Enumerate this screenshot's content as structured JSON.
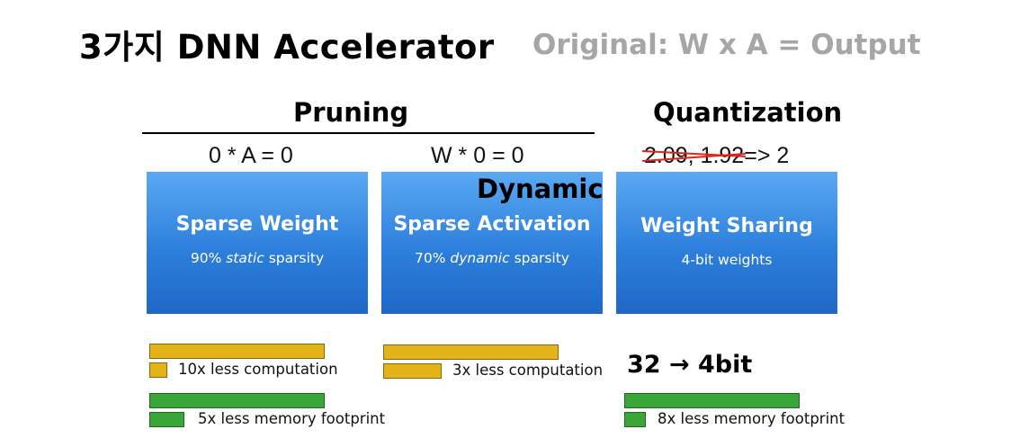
{
  "header": {
    "title": "3가지 DNN Accelerator",
    "subtitle": "Original: W x A = Output"
  },
  "sections": {
    "pruning": "Pruning",
    "quantization": "Quantization"
  },
  "equations": {
    "weight_zero": "0 * A = 0",
    "activation_zero": "W * 0 = 0",
    "quant_struck": "2.09, 1.92",
    "quant_result": "=> 2"
  },
  "dynamic_label": "Dynamic",
  "boxes": [
    {
      "title": "Sparse Weight",
      "sub_prefix": "90% ",
      "sub_em": "static",
      "sub_suffix": " sparsity"
    },
    {
      "title": "Sparse Activation",
      "sub_prefix": "70% ",
      "sub_em": "dynamic",
      "sub_suffix": " sparsity"
    },
    {
      "title": "Weight Sharing",
      "sub_prefix": "4-bit weights",
      "sub_em": "",
      "sub_suffix": ""
    }
  ],
  "metrics": {
    "sw_comp": "10x less computation",
    "sw_mem": "5x less memory footprint",
    "sa_comp": "3x less computation",
    "ws_bits": "32 → 4bit",
    "ws_mem": "8x less memory footprint"
  },
  "colors": {
    "computation_bar": "#e4b219",
    "memory_bar": "#3aa63a",
    "box_blue": "#2d7fdc",
    "strike_red": "#e2231a"
  }
}
